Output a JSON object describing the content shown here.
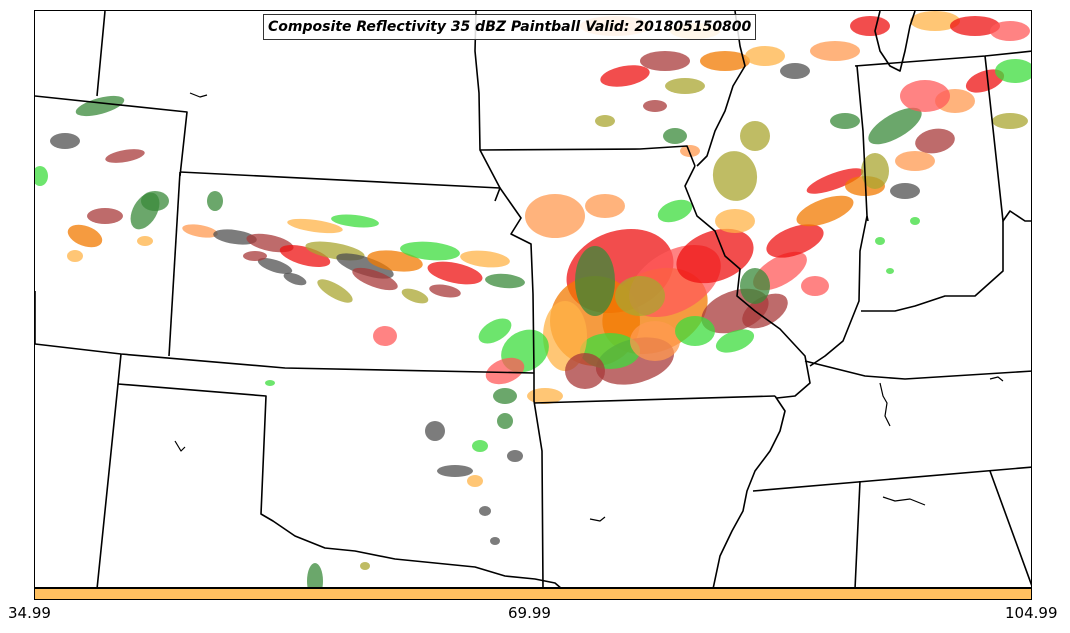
{
  "title": "Composite Reflectivity 35 dBZ Paintball Valid: 201805150800",
  "colorbar": {
    "color": "#FFC060",
    "ticks": [
      "34.99",
      "69.99",
      "104.99"
    ]
  },
  "palette": {
    "red": "#EE1111",
    "lightred": "#FF5A5A",
    "orange": "#F27A00",
    "lightorange": "#FF9A50",
    "yellow": "#FFB347",
    "olive": "#A9A630",
    "green": "#3CDC3C",
    "darkgreen": "#3A8A3A",
    "gray": "#505050",
    "maroon": "#A83A3A"
  },
  "map_features": [
    "state-boundaries",
    "coastline",
    "lakes",
    "rivers"
  ]
}
